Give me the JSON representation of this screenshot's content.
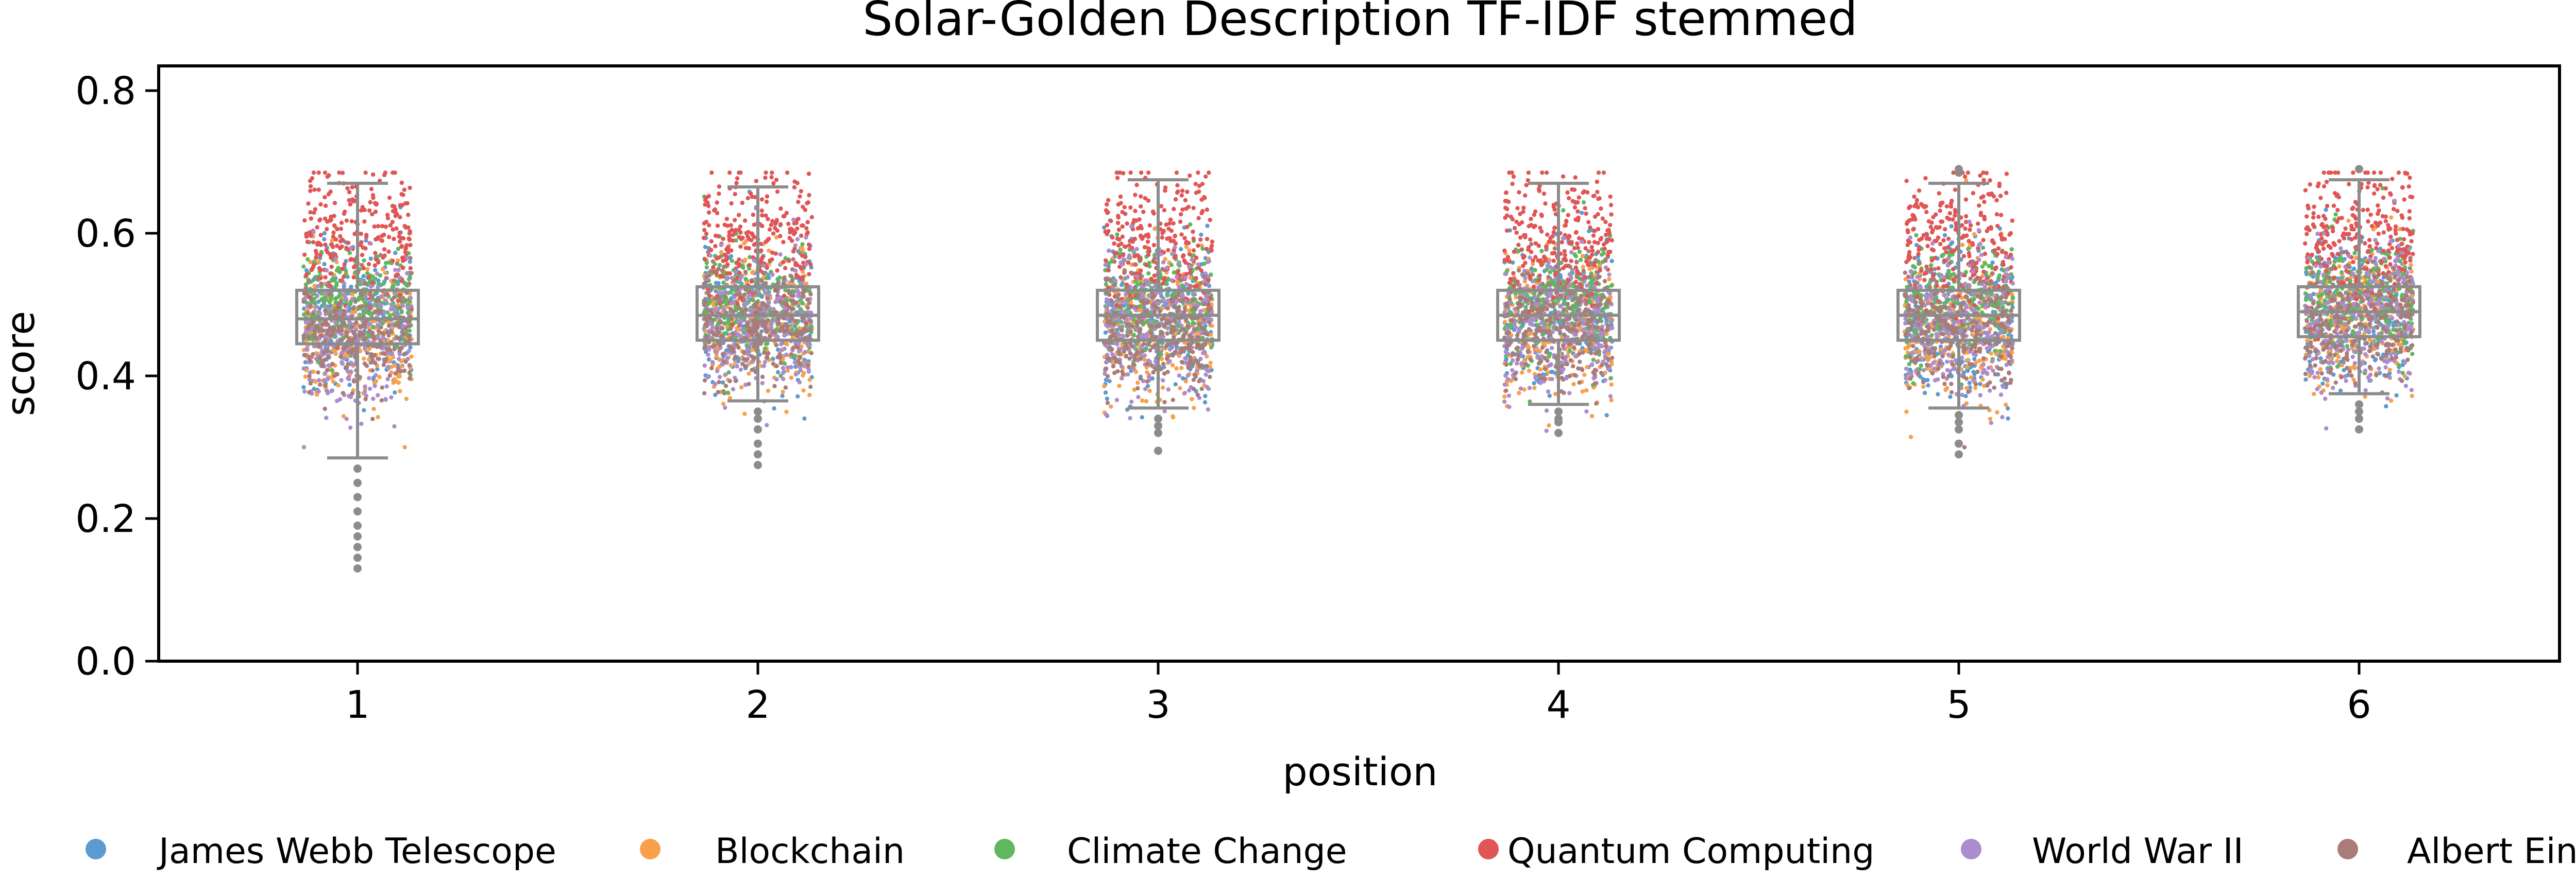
{
  "chart_data": {
    "type": "scatter",
    "subtype": "strip-plot-with-boxplot",
    "title": "Solar-Golden Description TF-IDF stemmed",
    "xlabel": "position",
    "ylabel": "score",
    "categories": [
      "1",
      "2",
      "3",
      "4",
      "5",
      "6"
    ],
    "ylim": [
      0.0,
      0.86
    ],
    "yticks": [
      0.0,
      0.2,
      0.4,
      0.6,
      0.8
    ],
    "ytick_labels": [
      "0.0",
      "0.2",
      "0.4",
      "0.6",
      "0.8"
    ],
    "grid": false,
    "legend_position": "bottom",
    "legend": [
      "James Webb Telescope",
      "Blockchain",
      "Climate Change",
      "Quantum Computing",
      "World War II",
      "Albert Einstein"
    ],
    "series": [
      {
        "name": "James Webb Telescope",
        "color": "#5b9bd0",
        "center": [
          0.48,
          0.48,
          0.48,
          0.48,
          0.48,
          0.49
        ],
        "spread": 0.05
      },
      {
        "name": "Blockchain",
        "color": "#f8a04c",
        "center": [
          0.46,
          0.47,
          0.47,
          0.47,
          0.46,
          0.48
        ],
        "spread": 0.05
      },
      {
        "name": "Climate Change",
        "color": "#5fb85f",
        "center": [
          0.5,
          0.5,
          0.5,
          0.5,
          0.5,
          0.51
        ],
        "spread": 0.04
      },
      {
        "name": "Quantum Computing",
        "color": "#e05555",
        "center": [
          0.59,
          0.59,
          0.59,
          0.59,
          0.59,
          0.6
        ],
        "spread": 0.05
      },
      {
        "name": "World War II",
        "color": "#ad8ccd",
        "center": [
          0.46,
          0.47,
          0.47,
          0.47,
          0.47,
          0.48
        ],
        "spread": 0.05
      },
      {
        "name": "Albert Einstein",
        "color": "#a97c78",
        "center": [
          0.46,
          0.47,
          0.46,
          0.47,
          0.47,
          0.48
        ],
        "spread": 0.04
      }
    ],
    "boxplots": [
      {
        "position": "1",
        "whisker_low": 0.285,
        "q1": 0.445,
        "median": 0.48,
        "q3": 0.52,
        "whisker_high": 0.67,
        "outliers": [
          0.27,
          0.25,
          0.23,
          0.21,
          0.19,
          0.175,
          0.16,
          0.145,
          0.13
        ]
      },
      {
        "position": "2",
        "whisker_low": 0.365,
        "q1": 0.45,
        "median": 0.485,
        "q3": 0.525,
        "whisker_high": 0.665,
        "outliers": [
          0.35,
          0.34,
          0.325,
          0.305,
          0.29,
          0.275
        ]
      },
      {
        "position": "3",
        "whisker_low": 0.355,
        "q1": 0.45,
        "median": 0.485,
        "q3": 0.52,
        "whisker_high": 0.675,
        "outliers": [
          0.34,
          0.33,
          0.32,
          0.295
        ]
      },
      {
        "position": "4",
        "whisker_low": 0.36,
        "q1": 0.45,
        "median": 0.485,
        "q3": 0.52,
        "whisker_high": 0.67,
        "outliers": [
          0.35,
          0.34,
          0.335,
          0.32
        ]
      },
      {
        "position": "5",
        "whisker_low": 0.355,
        "q1": 0.45,
        "median": 0.485,
        "q3": 0.52,
        "whisker_high": 0.67,
        "outliers": [
          0.345,
          0.335,
          0.325,
          0.305,
          0.29,
          0.685,
          0.69
        ]
      },
      {
        "position": "6",
        "whisker_low": 0.375,
        "q1": 0.455,
        "median": 0.49,
        "q3": 0.525,
        "whisker_high": 0.675,
        "outliers": [
          0.36,
          0.35,
          0.34,
          0.325,
          0.69
        ]
      }
    ]
  }
}
